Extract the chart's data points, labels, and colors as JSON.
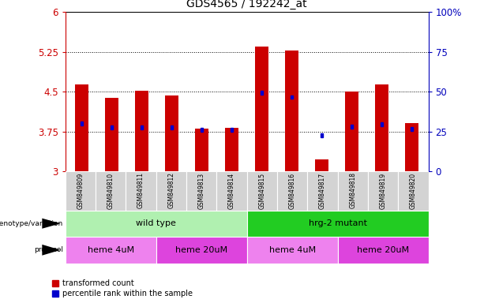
{
  "title": "GDS4565 / 192242_at",
  "samples": [
    "GSM849809",
    "GSM849810",
    "GSM849811",
    "GSM849812",
    "GSM849813",
    "GSM849814",
    "GSM849815",
    "GSM849816",
    "GSM849817",
    "GSM849818",
    "GSM849819",
    "GSM849820"
  ],
  "red_values": [
    4.63,
    4.38,
    4.51,
    4.43,
    3.8,
    3.82,
    5.35,
    5.28,
    3.22,
    4.5,
    4.63,
    3.9
  ],
  "blue_values": [
    3.9,
    3.83,
    3.83,
    3.83,
    3.78,
    3.78,
    4.48,
    4.4,
    3.68,
    3.84,
    3.88,
    3.8
  ],
  "y_min": 3.0,
  "y_max": 6.0,
  "y_ticks_left": [
    3.0,
    3.75,
    4.5,
    5.25,
    6.0
  ],
  "y_ticks_left_labels": [
    "3",
    "3.75",
    "4.5",
    "5.25",
    "6"
  ],
  "y_ticks_right": [
    0,
    25,
    50,
    75,
    100
  ],
  "y_ticks_right_labels": [
    "0",
    "25",
    "50",
    "75",
    "100%"
  ],
  "bar_color": "#cc0000",
  "blue_color": "#0000cc",
  "tick_color_left": "#cc0000",
  "tick_color_right": "#0000bb",
  "genotype_groups": [
    {
      "label": "wild type",
      "start": 0,
      "end": 5,
      "color": "#b0f0b0"
    },
    {
      "label": "hrg-2 mutant",
      "start": 6,
      "end": 11,
      "color": "#22cc22"
    }
  ],
  "protocol_groups": [
    {
      "label": "heme 4uM",
      "start": 0,
      "end": 2,
      "color": "#ee82ee"
    },
    {
      "label": "heme 20uM",
      "start": 3,
      "end": 5,
      "color": "#dd44dd"
    },
    {
      "label": "heme 4uM",
      "start": 6,
      "end": 8,
      "color": "#ee82ee"
    },
    {
      "label": "heme 20uM",
      "start": 9,
      "end": 11,
      "color": "#dd44dd"
    }
  ],
  "legend_red_label": "transformed count",
  "legend_blue_label": "percentile rank within the sample",
  "sample_bg_color": "#d3d3d3",
  "bar_width": 0.45,
  "blue_sq_size": 0.07
}
